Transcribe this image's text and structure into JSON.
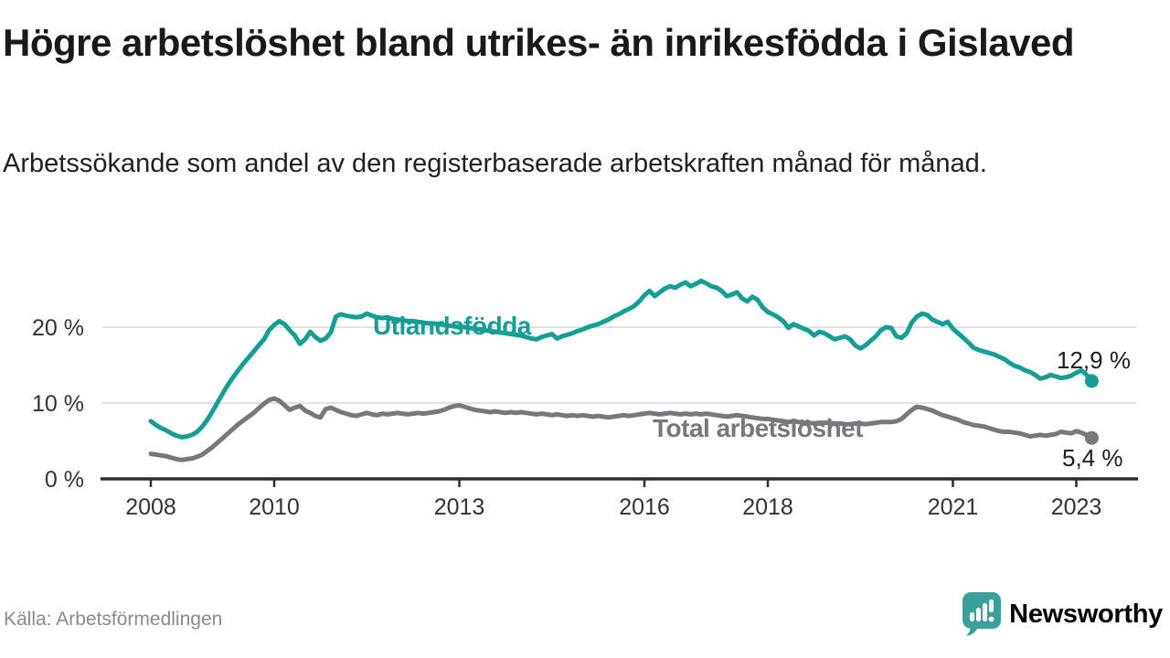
{
  "header": {
    "title": "Högre arbetslöshet bland utrikes- än inrikesfödda i Gislaved",
    "subtitle": "Arbetssökande som andel av den registerbaserade arbetskraften månad för månad."
  },
  "footer": {
    "source": "Källa: Arbetsförmedlingen",
    "brand": "Newsworthy",
    "brand_color": "#3d9f99"
  },
  "chart_data": {
    "type": "line",
    "unit": "%",
    "frequency": "monthly",
    "x_start": "2008-01",
    "x_end": "2023-04",
    "ylim": [
      0,
      27
    ],
    "grid": "horizontal",
    "y_ticks": [
      {
        "value": 0,
        "label": "0 %"
      },
      {
        "value": 10,
        "label": "10 %"
      },
      {
        "value": 20,
        "label": "20 %"
      }
    ],
    "x_ticks": [
      {
        "year": 2008,
        "label": "2008"
      },
      {
        "year": 2010,
        "label": "2010"
      },
      {
        "year": 2013,
        "label": "2013"
      },
      {
        "year": 2016,
        "label": "2016"
      },
      {
        "year": 2018,
        "label": "2018"
      },
      {
        "year": 2021,
        "label": "2021"
      },
      {
        "year": 2023,
        "label": "2023"
      }
    ],
    "series": [
      {
        "name": "Utlandsfödda",
        "color": "#149e94",
        "end_label": "12,9 %",
        "values": [
          7.6,
          7.1,
          6.7,
          6.4,
          6.0,
          5.7,
          5.5,
          5.6,
          5.8,
          6.2,
          6.9,
          7.8,
          8.9,
          10.1,
          11.3,
          12.4,
          13.4,
          14.3,
          15.2,
          16.0,
          16.8,
          17.6,
          18.4,
          19.6,
          20.3,
          20.8,
          20.4,
          19.6,
          18.9,
          17.8,
          18.4,
          19.4,
          18.7,
          18.2,
          18.5,
          19.3,
          21.4,
          21.7,
          21.5,
          21.4,
          21.3,
          21.4,
          21.8,
          21.5,
          21.3,
          21.2,
          21.3,
          21.1,
          21.0,
          20.9,
          20.8,
          20.8,
          20.7,
          20.6,
          20.5,
          20.5,
          20.4,
          20.3,
          20.2,
          20.1,
          20.1,
          20.0,
          19.9,
          19.8,
          19.7,
          19.6,
          19.5,
          19.4,
          19.3,
          19.2,
          19.1,
          19.0,
          18.9,
          18.7,
          18.5,
          18.4,
          18.7,
          18.9,
          19.1,
          18.5,
          18.8,
          19.0,
          19.2,
          19.5,
          19.7,
          20.0,
          20.2,
          20.4,
          20.7,
          21.0,
          21.4,
          21.7,
          22.1,
          22.4,
          22.8,
          23.4,
          24.2,
          24.8,
          24.1,
          24.6,
          25.1,
          25.4,
          25.2,
          25.6,
          25.9,
          25.4,
          25.7,
          26.1,
          25.8,
          25.4,
          25.2,
          24.8,
          24.1,
          24.3,
          24.6,
          23.8,
          23.4,
          24.0,
          23.6,
          22.6,
          22.0,
          21.7,
          21.3,
          20.8,
          19.9,
          20.4,
          20.1,
          19.8,
          19.5,
          18.9,
          19.4,
          19.2,
          18.8,
          18.4,
          18.6,
          18.8,
          18.4,
          17.6,
          17.2,
          17.6,
          18.2,
          18.8,
          19.6,
          20.0,
          19.9,
          18.8,
          18.6,
          19.2,
          20.6,
          21.4,
          21.8,
          21.6,
          21.0,
          20.7,
          20.4,
          20.7,
          19.8,
          19.2,
          18.6,
          18.0,
          17.3,
          17.0,
          16.8,
          16.6,
          16.4,
          16.1,
          15.8,
          15.3,
          14.9,
          14.7,
          14.3,
          14.1,
          13.7,
          13.2,
          13.4,
          13.7,
          13.5,
          13.3,
          13.4,
          13.6,
          14.0,
          14.3,
          13.7,
          12.9
        ]
      },
      {
        "name": "Total arbetslöshet",
        "color": "#77787b",
        "end_label": "5,4 %",
        "values": [
          3.3,
          3.2,
          3.1,
          3.0,
          2.8,
          2.6,
          2.5,
          2.6,
          2.7,
          2.9,
          3.2,
          3.7,
          4.2,
          4.8,
          5.4,
          6.0,
          6.6,
          7.2,
          7.7,
          8.2,
          8.7,
          9.3,
          9.9,
          10.4,
          10.6,
          10.3,
          9.7,
          9.1,
          9.4,
          9.6,
          9.0,
          8.7,
          8.3,
          8.1,
          9.2,
          9.4,
          9.1,
          8.8,
          8.6,
          8.4,
          8.3,
          8.5,
          8.7,
          8.5,
          8.4,
          8.6,
          8.5,
          8.6,
          8.7,
          8.6,
          8.5,
          8.6,
          8.7,
          8.6,
          8.7,
          8.8,
          8.9,
          9.1,
          9.4,
          9.6,
          9.7,
          9.5,
          9.3,
          9.1,
          9.0,
          8.9,
          8.8,
          8.9,
          8.8,
          8.7,
          8.8,
          8.7,
          8.8,
          8.7,
          8.6,
          8.5,
          8.6,
          8.5,
          8.4,
          8.5,
          8.4,
          8.3,
          8.4,
          8.3,
          8.4,
          8.3,
          8.2,
          8.3,
          8.2,
          8.1,
          8.2,
          8.3,
          8.4,
          8.3,
          8.4,
          8.5,
          8.6,
          8.7,
          8.6,
          8.5,
          8.6,
          8.7,
          8.6,
          8.5,
          8.6,
          8.5,
          8.6,
          8.5,
          8.6,
          8.5,
          8.4,
          8.3,
          8.2,
          8.3,
          8.4,
          8.3,
          8.2,
          8.1,
          8.0,
          7.9,
          7.9,
          7.8,
          7.7,
          7.6,
          7.5,
          7.6,
          7.5,
          7.4,
          7.4,
          7.3,
          7.4,
          7.4,
          7.4,
          7.3,
          7.3,
          7.2,
          7.2,
          7.3,
          7.3,
          7.2,
          7.3,
          7.4,
          7.5,
          7.5,
          7.5,
          7.6,
          7.9,
          8.5,
          9.1,
          9.5,
          9.4,
          9.2,
          9.0,
          8.7,
          8.4,
          8.2,
          8.0,
          7.8,
          7.5,
          7.3,
          7.1,
          7.0,
          6.9,
          6.7,
          6.5,
          6.3,
          6.2,
          6.2,
          6.1,
          6.0,
          5.8,
          5.6,
          5.7,
          5.8,
          5.7,
          5.8,
          5.9,
          6.2,
          6.1,
          6.0,
          6.3,
          6.1,
          5.8,
          5.4
        ]
      }
    ]
  }
}
